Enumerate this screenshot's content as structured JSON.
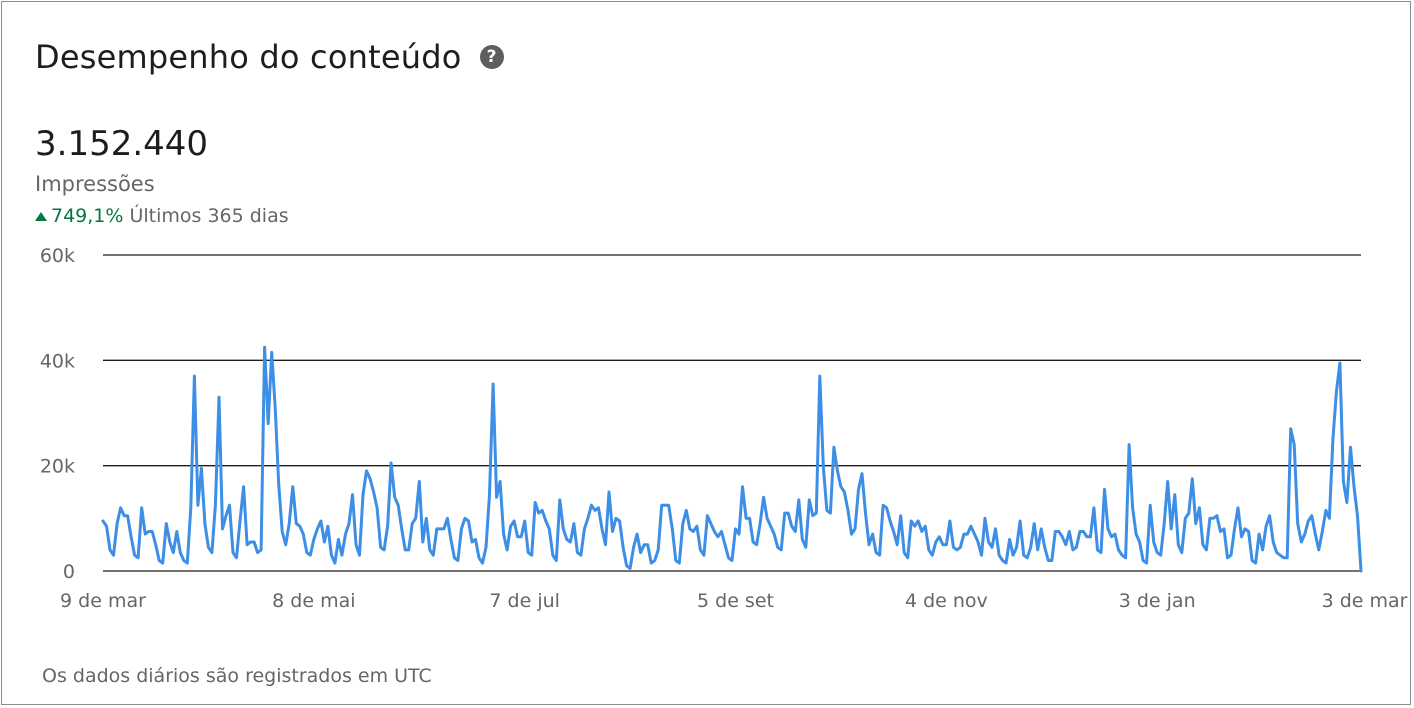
{
  "header": {
    "title": "Desempenho do conteúdo",
    "help_icon": "question-circle-icon"
  },
  "metric": {
    "value": "3.152.440",
    "label": "Impressões",
    "trend_pct": "749,1%",
    "trend_period": "Últimos 365 dias",
    "trend_color": "#057642"
  },
  "footnote": "Os dados diários são registrados em UTC",
  "colors": {
    "line": "#3d8ee6",
    "grid": "#1d1d1d",
    "axis_text": "#666666"
  },
  "chart_data": {
    "type": "line",
    "ylim": [
      0,
      60000
    ],
    "y_ticks": [
      {
        "value": 0,
        "label": "0"
      },
      {
        "value": 20000,
        "label": "20k"
      },
      {
        "value": 40000,
        "label": "40k"
      },
      {
        "value": 60000,
        "label": "60k"
      }
    ],
    "x_ticks": [
      {
        "day": 0,
        "label": "9 de mar"
      },
      {
        "day": 60,
        "label": "8 de mai"
      },
      {
        "day": 120,
        "label": "7 de jul"
      },
      {
        "day": 180,
        "label": "5 de set"
      },
      {
        "day": 240,
        "label": "4 de nov"
      },
      {
        "day": 300,
        "label": "3 de jan"
      },
      {
        "day": 359,
        "label": "3 de mar"
      }
    ],
    "grid": true,
    "series": [
      {
        "values": [
          9500,
          8500,
          4000,
          3000,
          9000,
          12000,
          10500,
          10500,
          6500,
          3000,
          2500,
          12000,
          7000,
          7500,
          7500,
          5000,
          2000,
          1500,
          9000,
          5500,
          3500,
          7500,
          3500,
          2000,
          1500,
          12000,
          37000,
          12500,
          19500,
          9000,
          4500,
          3500,
          12500,
          33000,
          8000,
          10500,
          12500,
          3500,
          2500,
          9500,
          16000,
          5000,
          5500,
          5500,
          3500,
          4000,
          42500,
          28000,
          41500,
          31000,
          16500,
          7500,
          5000,
          9000,
          16000,
          9000,
          8500,
          7000,
          3500,
          3000,
          6000,
          8000,
          9500,
          5500,
          8500,
          3000,
          1500,
          6000,
          3000,
          7000,
          9000,
          14500,
          5000,
          3000,
          14500,
          19000,
          17500,
          15000,
          12000,
          4500,
          4000,
          8500,
          20500,
          14000,
          12500,
          8000,
          4000,
          4000,
          9000,
          10000,
          17000,
          5500,
          10000,
          4000,
          3000,
          8000,
          8000,
          8000,
          10000,
          6000,
          2500,
          2000,
          8000,
          10000,
          9500,
          5500,
          6000,
          2500,
          1500,
          4500,
          14500,
          35500,
          14000,
          17000,
          7000,
          4000,
          8500,
          9500,
          6500,
          6500,
          9500,
          3500,
          3000,
          13000,
          11000,
          11500,
          9500,
          8000,
          3000,
          2000,
          13500,
          8000,
          6000,
          5500,
          9000,
          3500,
          3000,
          8000,
          10000,
          12500,
          11500,
          12000,
          8000,
          5000,
          15000,
          7500,
          10000,
          9500,
          4500,
          1000,
          500,
          4500,
          7000,
          3500,
          5000,
          5000,
          1500,
          2000,
          4000,
          12500,
          12500,
          12500,
          8000,
          2000,
          1500,
          9000,
          11500,
          8000,
          7500,
          8500,
          4000,
          3000,
          10500,
          9000,
          7500,
          6500,
          7500,
          5000,
          2500,
          2000,
          8000,
          7000,
          16000,
          10000,
          10000,
          5500,
          5000,
          9000,
          14000,
          10000,
          8500,
          7000,
          4500,
          4000,
          11000,
          11000,
          8500,
          7500,
          13500,
          6000,
          4500,
          13500,
          10500,
          11000,
          37000,
          19500,
          11500,
          11000,
          23500,
          19000,
          16000,
          15000,
          11500,
          7000,
          8000,
          15500,
          18500,
          11000,
          5000,
          7000,
          3500,
          3000,
          12500,
          12000,
          9500,
          7500,
          5000,
          10500,
          3500,
          2500,
          9500,
          8500,
          9500,
          7500,
          8500,
          4000,
          3000,
          5500,
          6500,
          5000,
          5000,
          9500,
          4500,
          4000,
          4500,
          7000,
          7000,
          8500,
          7000,
          5500,
          3000,
          10000,
          5500,
          4500,
          8000,
          3000,
          2000,
          1500,
          6000,
          3000,
          4500,
          9500,
          3000,
          2500,
          4500,
          9000,
          4000,
          8000,
          4500,
          2000,
          2000,
          7500,
          7500,
          6500,
          5000,
          7500,
          4000,
          4500,
          7500,
          7500,
          6500,
          6500,
          12000,
          4000,
          3500,
          15500,
          8000,
          6500,
          7000,
          4000,
          3000,
          2500,
          24000,
          12000,
          7000,
          5500,
          2000,
          1500,
          12500,
          5500,
          3500,
          3000,
          9000,
          17000,
          8000,
          14500,
          5000,
          3500,
          10000,
          11000,
          17500,
          9000,
          12000,
          5000,
          4000,
          10000,
          10000,
          10500,
          7500,
          8000,
          2500,
          3000,
          8000,
          12000,
          6500,
          8000,
          7500,
          2000,
          1500,
          7000,
          4000,
          8500,
          10500,
          5500,
          3500,
          3000,
          2500,
          2500,
          27000,
          24000,
          9000,
          5500,
          7000,
          9500,
          10500,
          7000,
          4000,
          7500,
          11500,
          10000,
          25000,
          34000,
          39500,
          17000,
          13000,
          23500,
          16000,
          10500,
          0
        ]
      }
    ]
  }
}
